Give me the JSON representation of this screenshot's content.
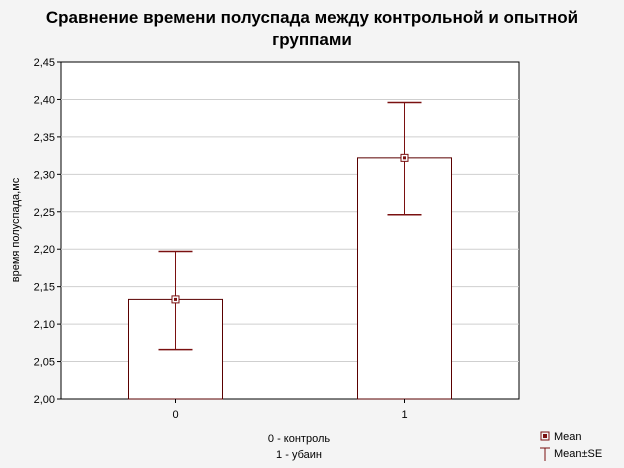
{
  "chart_data": {
    "type": "bar",
    "title_lines": [
      "Сравнение времени полуспада между контрольной и опытной",
      "группами"
    ],
    "ylabel": "время полуспада,мс",
    "xlabel_lines": [
      "0 - контроль",
      "1 - убаин"
    ],
    "categories": [
      "0",
      "1"
    ],
    "values": [
      2.133,
      2.322
    ],
    "error_low": [
      2.066,
      2.246
    ],
    "error_high": [
      2.197,
      2.396
    ],
    "ylim": [
      2.0,
      2.45
    ],
    "yticks": [
      "2,00",
      "2,05",
      "2,10",
      "2,15",
      "2,20",
      "2,25",
      "2,30",
      "2,35",
      "2,40",
      "2,45"
    ],
    "ytick_values": [
      2.0,
      2.05,
      2.1,
      2.15,
      2.2,
      2.25,
      2.3,
      2.35,
      2.4,
      2.45
    ],
    "grid": true,
    "legend": [
      {
        "label": "Mean",
        "marker": "square"
      },
      {
        "label": "Mean±SE",
        "marker": "errorbar"
      }
    ],
    "colors": {
      "bar_stroke": "#5a0000",
      "bar_fill": "#ffffff",
      "error": "#7a1010",
      "grid": "#cfcfcf",
      "plot_bg": "#ffffff",
      "page_bg": "#f4f4f4"
    }
  }
}
